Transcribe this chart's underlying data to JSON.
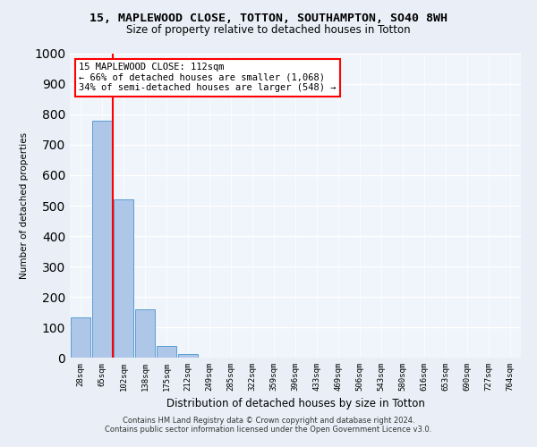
{
  "title1": "15, MAPLEWOOD CLOSE, TOTTON, SOUTHAMPTON, SO40 8WH",
  "title2": "Size of property relative to detached houses in Totton",
  "xlabel": "Distribution of detached houses by size in Totton",
  "ylabel": "Number of detached properties",
  "bar_values": [
    133,
    778,
    522,
    160,
    37,
    13,
    0,
    0,
    0,
    0,
    0,
    0,
    0,
    0,
    0,
    0,
    0,
    0,
    0,
    0,
    0
  ],
  "bar_labels": [
    "28sqm",
    "65sqm",
    "102sqm",
    "138sqm",
    "175sqm",
    "212sqm",
    "249sqm",
    "285sqm",
    "322sqm",
    "359sqm",
    "396sqm",
    "433sqm",
    "469sqm",
    "506sqm",
    "543sqm",
    "580sqm",
    "616sqm",
    "653sqm",
    "690sqm",
    "727sqm",
    "764sqm"
  ],
  "bar_color": "#aec6e8",
  "bar_edge_color": "#5a9fd4",
  "vline_x": 1.5,
  "vline_color": "red",
  "annotation_text": "15 MAPLEWOOD CLOSE: 112sqm\n← 66% of detached houses are smaller (1,068)\n34% of semi-detached houses are larger (548) →",
  "annotation_box_color": "white",
  "annotation_box_edge": "red",
  "footnote": "Contains HM Land Registry data © Crown copyright and database right 2024.\nContains public sector information licensed under the Open Government Licence v3.0.",
  "ylim": [
    0,
    1000
  ],
  "yticks": [
    0,
    100,
    200,
    300,
    400,
    500,
    600,
    700,
    800,
    900,
    1000
  ],
  "bg_color": "#eaeff7",
  "plot_bg_color": "#f0f4fb"
}
